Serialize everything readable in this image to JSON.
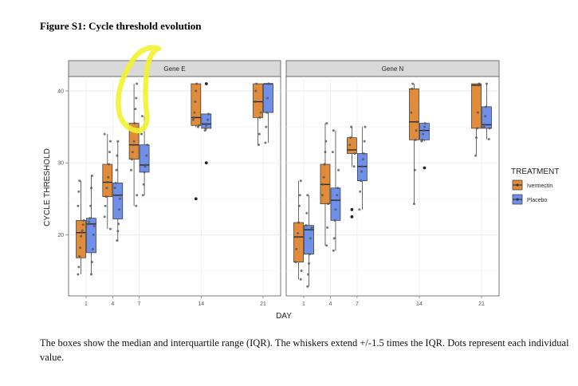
{
  "figure_title": "Figure S1: Cycle threshold evolution",
  "caption": "The boxes show the median and interquartile range (IQR). The whiskers extend +/-1.5 times the IQR.  Dots represent each individual value.",
  "colors": {
    "Ivermectin": "#E08C3B",
    "Placebo": "#6F8FE8",
    "strip": "#d9d9d9",
    "highlight": "#f2f230"
  },
  "annotation": {
    "type": "hand-drawn-circle",
    "color": "#f2f230"
  },
  "chart_data": {
    "type": "box",
    "xlabel": "DAY",
    "ylabel": "CYCLE THRESHOLD",
    "x_ticks": [
      1,
      4,
      7,
      14,
      21
    ],
    "y_ticks": [
      20,
      30,
      40
    ],
    "ylim": [
      11.5,
      42
    ],
    "grid": true,
    "legend": {
      "title": "TREATMENT",
      "position": "right",
      "entries": [
        "Ivermectin",
        "Placebo"
      ]
    },
    "facets": [
      {
        "label": "Gene E",
        "groups": [
          {
            "day": 1,
            "treatment": "Ivermectin",
            "q1": 16.8,
            "median": 20.3,
            "q3": 22.0,
            "low": 14.5,
            "high": 27.5,
            "points": [
              14.5,
              15.5,
              17,
              18.2,
              19.8,
              20.3,
              20.6,
              21.4,
              22,
              24,
              26,
              27.5
            ]
          },
          {
            "day": 1,
            "treatment": "Placebo",
            "q1": 17.5,
            "median": 21.5,
            "q3": 22.3,
            "low": 14.5,
            "high": 28.2,
            "points": [
              14.5,
              16.2,
              18,
              20,
              21.2,
              21.5,
              21.8,
              22.3,
              24,
              26.5,
              28.2
            ]
          },
          {
            "day": 4,
            "treatment": "Ivermectin",
            "q1": 25.3,
            "median": 27.3,
            "q3": 29.8,
            "low": 20.8,
            "high": 34.0,
            "points": [
              20.8,
              22.5,
              24,
              25.3,
              26.5,
              27.3,
              28,
              29.8,
              31.5,
              33,
              34
            ]
          },
          {
            "day": 4,
            "treatment": "Placebo",
            "q1": 22.2,
            "median": 25.5,
            "q3": 27.2,
            "low": 19.2,
            "high": 33.0,
            "points": [
              19.2,
              20.5,
              21.5,
              23.5,
              25,
              25.5,
              26.5,
              27.2,
              29,
              31,
              33
            ]
          },
          {
            "day": 7,
            "treatment": "Ivermectin",
            "q1": 30.5,
            "median": 32.5,
            "q3": 35.5,
            "low": 24.0,
            "high": 41.0,
            "points": [
              24,
              25.5,
              29,
              30.5,
              31.5,
              32.5,
              33,
              35.5,
              37.5,
              39,
              41
            ]
          },
          {
            "day": 7,
            "treatment": "Placebo",
            "q1": 28.7,
            "median": 29.7,
            "q3": 32.5,
            "low": 25.5,
            "high": 36.5,
            "points": [
              25.5,
              27,
              28.7,
              29.5,
              29.7,
              31,
              32.5,
              34,
              36.5
            ]
          },
          {
            "day": 14,
            "treatment": "Ivermectin",
            "q1": 35.2,
            "median": 36.3,
            "q3": 41.0,
            "low": 35.0,
            "high": 41.0,
            "points": [
              25,
              35,
              35.2,
              36,
              36.3,
              37,
              38.5,
              40,
              41
            ]
          },
          {
            "day": 14,
            "treatment": "Placebo",
            "q1": 34.8,
            "median": 35.4,
            "q3": 36.8,
            "low": 34.5,
            "high": 36.8,
            "points": [
              30,
              34.5,
              34.8,
              35.2,
              35.4,
              36,
              36.8,
              41
            ]
          },
          {
            "day": 21,
            "treatment": "Ivermectin",
            "q1": 36.3,
            "median": 38.5,
            "q3": 41.0,
            "low": 32.5,
            "high": 41.0,
            "points": [
              32.5,
              34,
              36.3,
              37,
              38.5,
              40,
              41
            ]
          },
          {
            "day": 21,
            "treatment": "Placebo",
            "q1": 37.0,
            "median": 41.0,
            "q3": 41.0,
            "low": 32.8,
            "high": 41.0,
            "points": [
              32.8,
              35,
              37,
              39,
              41,
              41
            ]
          }
        ]
      },
      {
        "label": "Gene N",
        "groups": [
          {
            "day": 1,
            "treatment": "Ivermectin",
            "q1": 16.2,
            "median": 19.7,
            "q3": 21.7,
            "low": 13.8,
            "high": 27.5,
            "points": [
              13.8,
              15,
              16.2,
              18,
              19.7,
              20.2,
              21.7,
              24,
              25.5,
              27.5
            ]
          },
          {
            "day": 1,
            "treatment": "Placebo",
            "q1": 17.3,
            "median": 20.7,
            "q3": 21.3,
            "low": 12.8,
            "high": 25.5,
            "points": [
              12.8,
              14.5,
              16,
              17.3,
              19.5,
              20.7,
              21,
              21.3,
              23,
              25.5
            ]
          },
          {
            "day": 4,
            "treatment": "Ivermectin",
            "q1": 24.3,
            "median": 27.0,
            "q3": 29.8,
            "low": 18.5,
            "high": 35.5,
            "points": [
              18.5,
              21,
              24.3,
              25.5,
              27,
              28,
              29.8,
              31.5,
              33,
              35.5
            ]
          },
          {
            "day": 4,
            "treatment": "Placebo",
            "q1": 22.0,
            "median": 24.8,
            "q3": 26.5,
            "low": 17.8,
            "high": 34.5,
            "points": [
              17.8,
              19.5,
              22,
              23.5,
              24.8,
              25.5,
              26.5,
              29,
              31.5,
              34.5
            ]
          },
          {
            "day": 7,
            "treatment": "Ivermectin",
            "q1": 31.3,
            "median": 31.8,
            "q3": 33.5,
            "low": 29.5,
            "high": 35.0,
            "points": [
              22.5,
              23.5,
              29.5,
              31.3,
              31.8,
              32.5,
              33.5,
              35
            ]
          },
          {
            "day": 7,
            "treatment": "Placebo",
            "q1": 27.5,
            "median": 29.5,
            "q3": 31.3,
            "low": 23.5,
            "high": 35.0,
            "points": [
              23.5,
              26,
              27.5,
              28.8,
              29.5,
              30.5,
              31.3,
              33,
              35
            ]
          },
          {
            "day": 14,
            "treatment": "Ivermectin",
            "q1": 33.2,
            "median": 35.7,
            "q3": 40.3,
            "low": 24.3,
            "high": 41.0,
            "points": [
              24.3,
              29,
              33.2,
              34.5,
              35.7,
              37,
              40.3,
              41
            ]
          },
          {
            "day": 14,
            "treatment": "Placebo",
            "q1": 33.2,
            "median": 34.5,
            "q3": 35.5,
            "low": 33.0,
            "high": 35.5,
            "points": [
              29.3,
              33,
              33.2,
              34,
              34.5,
              35,
              35.5
            ]
          },
          {
            "day": 21,
            "treatment": "Ivermectin",
            "q1": 34.8,
            "median": 40.8,
            "q3": 41.0,
            "low": 31.0,
            "high": 41.0,
            "points": [
              31,
              33.5,
              34.8,
              37,
              40.8,
              41
            ]
          },
          {
            "day": 21,
            "treatment": "Placebo",
            "q1": 34.8,
            "median": 35.3,
            "q3": 37.8,
            "low": 33.3,
            "high": 41.0,
            "points": [
              33.3,
              34.8,
              35,
              35.3,
              36.5,
              37.8,
              41
            ]
          }
        ]
      }
    ]
  }
}
